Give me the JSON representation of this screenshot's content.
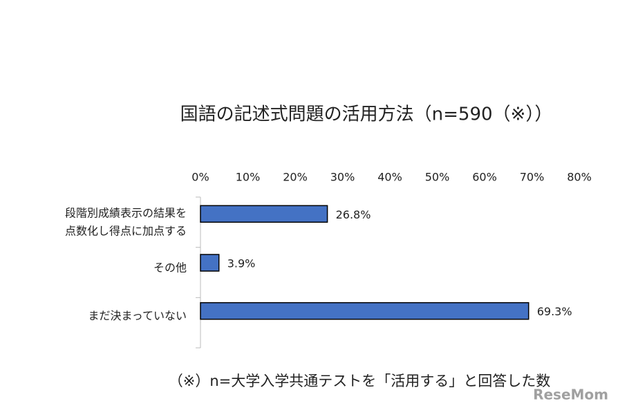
{
  "chart_data": {
    "type": "bar",
    "orientation": "horizontal",
    "title": "国語の記述式問題の活用方法（n=590（※））",
    "categories": [
      "段階別成績表示の結果を\n点数化し得点に加点する",
      "その他",
      "まだ決まっていない"
    ],
    "values": [
      26.8,
      3.9,
      69.3
    ],
    "value_labels": [
      "26.8%",
      "3.9%",
      "69.3%"
    ],
    "color": "#4472c4",
    "xlim": [
      0,
      80
    ],
    "xticks": [
      {
        "value": 0,
        "label": "0%"
      },
      {
        "value": 10,
        "label": "10%"
      },
      {
        "value": 20,
        "label": "20%"
      },
      {
        "value": 30,
        "label": "30%"
      },
      {
        "value": 40,
        "label": "40%"
      },
      {
        "value": 50,
        "label": "50%"
      },
      {
        "value": 60,
        "label": "60%"
      },
      {
        "value": 70,
        "label": "70%"
      },
      {
        "value": 80,
        "label": "80%"
      }
    ],
    "grid": false,
    "footnote": "（※）n=大学入学共通テストを「活用する」と回答した数",
    "watermark": "ReseMom"
  }
}
